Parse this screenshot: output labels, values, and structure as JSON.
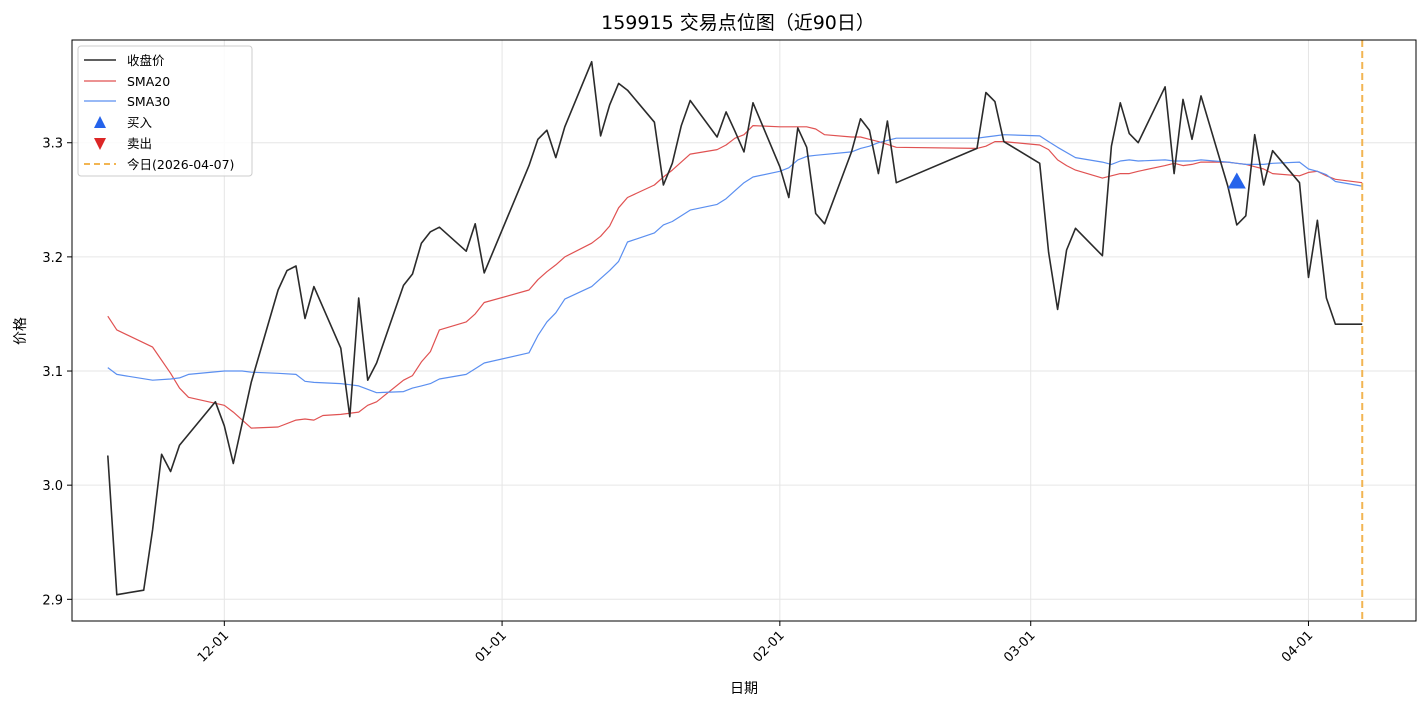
{
  "chart_data": {
    "type": "line",
    "title": "159915 交易点位图（近90日）",
    "xlabel": "日期",
    "ylabel": "价格",
    "x_ticks": [
      {
        "label": "12-01",
        "date": "2025-12-01"
      },
      {
        "label": "01-01",
        "date": "2026-01-01"
      },
      {
        "label": "02-01",
        "date": "2026-02-01"
      },
      {
        "label": "03-01",
        "date": "2026-03-01"
      },
      {
        "label": "04-01",
        "date": "2026-04-01"
      }
    ],
    "xlim": [
      "2025-11-14",
      "2026-04-13"
    ],
    "y_ticks": [
      2.9,
      3.0,
      3.1,
      3.2,
      3.3
    ],
    "ylim": [
      2.881,
      3.39
    ],
    "grid": true,
    "legend_position": "top-left",
    "colors": {
      "close": "#2b2b2b",
      "sma20": "#e05252",
      "sma30": "#5b8ff0",
      "buy": "#2563eb",
      "sell": "#dc2626",
      "today": "#f2b552"
    },
    "legend": [
      "收盘价",
      "SMA20",
      "SMA30",
      "买入",
      "卖出",
      "今日(2026-04-07)"
    ],
    "series": [
      {
        "name": "收盘价",
        "points": [
          [
            "2025-11-18",
            3.026
          ],
          [
            "2025-11-19",
            2.904
          ],
          [
            "2025-11-22",
            2.908
          ],
          [
            "2025-11-23",
            2.961
          ],
          [
            "2025-11-24",
            3.027
          ],
          [
            "2025-11-25",
            3.012
          ],
          [
            "2025-11-26",
            3.035
          ],
          [
            "2025-11-30",
            3.073
          ],
          [
            "2025-12-01",
            3.052
          ],
          [
            "2025-12-02",
            3.019
          ],
          [
            "2025-12-04",
            3.09
          ],
          [
            "2025-12-07",
            3.171
          ],
          [
            "2025-12-08",
            3.188
          ],
          [
            "2025-12-09",
            3.192
          ],
          [
            "2025-12-10",
            3.146
          ],
          [
            "2025-12-11",
            3.174
          ],
          [
            "2025-12-14",
            3.12
          ],
          [
            "2025-12-15",
            3.06
          ],
          [
            "2025-12-16",
            3.164
          ],
          [
            "2025-12-17",
            3.092
          ],
          [
            "2025-12-18",
            3.107
          ],
          [
            "2025-12-21",
            3.175
          ],
          [
            "2025-12-22",
            3.185
          ],
          [
            "2025-12-23",
            3.212
          ],
          [
            "2025-12-24",
            3.222
          ],
          [
            "2025-12-25",
            3.226
          ],
          [
            "2025-12-28",
            3.205
          ],
          [
            "2025-12-29",
            3.229
          ],
          [
            "2025-12-30",
            3.186
          ],
          [
            "2026-01-04",
            3.28
          ],
          [
            "2026-01-05",
            3.303
          ],
          [
            "2026-01-06",
            3.311
          ],
          [
            "2026-01-07",
            3.287
          ],
          [
            "2026-01-08",
            3.314
          ],
          [
            "2026-01-11",
            3.371
          ],
          [
            "2026-01-12",
            3.306
          ],
          [
            "2026-01-13",
            3.333
          ],
          [
            "2026-01-14",
            3.352
          ],
          [
            "2026-01-15",
            3.346
          ],
          [
            "2026-01-18",
            3.318
          ],
          [
            "2026-01-19",
            3.263
          ],
          [
            "2026-01-20",
            3.282
          ],
          [
            "2026-01-21",
            3.315
          ],
          [
            "2026-01-22",
            3.337
          ],
          [
            "2026-01-25",
            3.305
          ],
          [
            "2026-01-26",
            3.327
          ],
          [
            "2026-01-27",
            3.31
          ],
          [
            "2026-01-28",
            3.292
          ],
          [
            "2026-01-29",
            3.335
          ],
          [
            "2026-02-01",
            3.279
          ],
          [
            "2026-02-02",
            3.252
          ],
          [
            "2026-02-03",
            3.313
          ],
          [
            "2026-02-04",
            3.296
          ],
          [
            "2026-02-05",
            3.238
          ],
          [
            "2026-02-06",
            3.229
          ],
          [
            "2026-02-09",
            3.292
          ],
          [
            "2026-02-10",
            3.321
          ],
          [
            "2026-02-11",
            3.311
          ],
          [
            "2026-02-12",
            3.273
          ],
          [
            "2026-02-13",
            3.319
          ],
          [
            "2026-02-14",
            3.265
          ],
          [
            "2026-02-23",
            3.295
          ],
          [
            "2026-02-24",
            3.344
          ],
          [
            "2026-02-25",
            3.336
          ],
          [
            "2026-02-26",
            3.301
          ],
          [
            "2026-03-02",
            3.282
          ],
          [
            "2026-03-03",
            3.204
          ],
          [
            "2026-03-04",
            3.154
          ],
          [
            "2026-03-05",
            3.206
          ],
          [
            "2026-03-06",
            3.225
          ],
          [
            "2026-03-09",
            3.201
          ],
          [
            "2026-03-10",
            3.297
          ],
          [
            "2026-03-11",
            3.335
          ],
          [
            "2026-03-12",
            3.308
          ],
          [
            "2026-03-13",
            3.3
          ],
          [
            "2026-03-16",
            3.349
          ],
          [
            "2026-03-17",
            3.273
          ],
          [
            "2026-03-18",
            3.338
          ],
          [
            "2026-03-19",
            3.303
          ],
          [
            "2026-03-20",
            3.341
          ],
          [
            "2026-03-23",
            3.262
          ],
          [
            "2026-03-24",
            3.228
          ],
          [
            "2026-03-25",
            3.236
          ],
          [
            "2026-03-26",
            3.307
          ],
          [
            "2026-03-27",
            3.263
          ],
          [
            "2026-03-28",
            3.293
          ],
          [
            "2026-03-31",
            3.265
          ],
          [
            "2026-04-01",
            3.182
          ],
          [
            "2026-04-02",
            3.232
          ],
          [
            "2026-04-03",
            3.164
          ],
          [
            "2026-04-04",
            3.141
          ],
          [
            "2026-04-07",
            3.141
          ]
        ]
      },
      {
        "name": "SMA20",
        "points": [
          [
            "2025-11-18",
            3.148
          ],
          [
            "2025-11-19",
            3.136
          ],
          [
            "2025-11-23",
            3.121
          ],
          [
            "2025-11-25",
            3.098
          ],
          [
            "2025-11-26",
            3.085
          ],
          [
            "2025-11-27",
            3.077
          ],
          [
            "2025-12-01",
            3.07
          ],
          [
            "2025-12-02",
            3.064
          ],
          [
            "2025-12-04",
            3.05
          ],
          [
            "2025-12-07",
            3.051
          ],
          [
            "2025-12-09",
            3.057
          ],
          [
            "2025-12-10",
            3.058
          ],
          [
            "2025-12-11",
            3.057
          ],
          [
            "2025-12-12",
            3.061
          ],
          [
            "2025-12-14",
            3.062
          ],
          [
            "2025-12-16",
            3.064
          ],
          [
            "2025-12-17",
            3.07
          ],
          [
            "2025-12-18",
            3.073
          ],
          [
            "2025-12-21",
            3.092
          ],
          [
            "2025-12-22",
            3.096
          ],
          [
            "2025-12-23",
            3.108
          ],
          [
            "2025-12-24",
            3.117
          ],
          [
            "2025-12-25",
            3.136
          ],
          [
            "2025-12-28",
            3.143
          ],
          [
            "2025-12-29",
            3.15
          ],
          [
            "2025-12-30",
            3.16
          ],
          [
            "2026-01-04",
            3.171
          ],
          [
            "2026-01-05",
            3.18
          ],
          [
            "2026-01-06",
            3.187
          ],
          [
            "2026-01-07",
            3.193
          ],
          [
            "2026-01-08",
            3.2
          ],
          [
            "2026-01-11",
            3.212
          ],
          [
            "2026-01-12",
            3.218
          ],
          [
            "2026-01-13",
            3.227
          ],
          [
            "2026-01-14",
            3.243
          ],
          [
            "2026-01-15",
            3.252
          ],
          [
            "2026-01-18",
            3.263
          ],
          [
            "2026-01-19",
            3.27
          ],
          [
            "2026-01-20",
            3.276
          ],
          [
            "2026-01-22",
            3.29
          ],
          [
            "2026-01-25",
            3.294
          ],
          [
            "2026-01-26",
            3.298
          ],
          [
            "2026-01-27",
            3.304
          ],
          [
            "2026-01-28",
            3.307
          ],
          [
            "2026-01-29",
            3.315
          ],
          [
            "2026-02-01",
            3.314
          ],
          [
            "2026-02-02",
            3.314
          ],
          [
            "2026-02-04",
            3.314
          ],
          [
            "2026-02-05",
            3.312
          ],
          [
            "2026-02-06",
            3.307
          ],
          [
            "2026-02-09",
            3.305
          ],
          [
            "2026-02-10",
            3.305
          ],
          [
            "2026-02-11",
            3.303
          ],
          [
            "2026-02-12",
            3.301
          ],
          [
            "2026-02-14",
            3.296
          ],
          [
            "2026-02-23",
            3.295
          ],
          [
            "2026-02-24",
            3.297
          ],
          [
            "2026-02-25",
            3.301
          ],
          [
            "2026-02-26",
            3.301
          ],
          [
            "2026-03-02",
            3.298
          ],
          [
            "2026-03-03",
            3.294
          ],
          [
            "2026-03-04",
            3.285
          ],
          [
            "2026-03-05",
            3.28
          ],
          [
            "2026-03-06",
            3.276
          ],
          [
            "2026-03-09",
            3.269
          ],
          [
            "2026-03-10",
            3.271
          ],
          [
            "2026-03-11",
            3.273
          ],
          [
            "2026-03-12",
            3.273
          ],
          [
            "2026-03-13",
            3.275
          ],
          [
            "2026-03-16",
            3.28
          ],
          [
            "2026-03-17",
            3.282
          ],
          [
            "2026-03-18",
            3.28
          ],
          [
            "2026-03-19",
            3.281
          ],
          [
            "2026-03-20",
            3.283
          ],
          [
            "2026-03-23",
            3.283
          ],
          [
            "2026-03-24",
            3.282
          ],
          [
            "2026-03-25",
            3.281
          ],
          [
            "2026-03-26",
            3.279
          ],
          [
            "2026-03-27",
            3.277
          ],
          [
            "2026-03-28",
            3.273
          ],
          [
            "2026-03-31",
            3.271
          ],
          [
            "2026-04-01",
            3.274
          ],
          [
            "2026-04-02",
            3.275
          ],
          [
            "2026-04-03",
            3.271
          ],
          [
            "2026-04-04",
            3.268
          ],
          [
            "2026-04-07",
            3.265
          ]
        ]
      },
      {
        "name": "SMA30",
        "points": [
          [
            "2025-11-18",
            3.103
          ],
          [
            "2025-11-19",
            3.097
          ],
          [
            "2025-11-23",
            3.092
          ],
          [
            "2025-11-25",
            3.093
          ],
          [
            "2025-11-26",
            3.094
          ],
          [
            "2025-11-27",
            3.097
          ],
          [
            "2025-12-01",
            3.1
          ],
          [
            "2025-12-02",
            3.1
          ],
          [
            "2025-12-03",
            3.1
          ],
          [
            "2025-12-04",
            3.099
          ],
          [
            "2025-12-07",
            3.098
          ],
          [
            "2025-12-09",
            3.097
          ],
          [
            "2025-12-10",
            3.091
          ],
          [
            "2025-12-11",
            3.09
          ],
          [
            "2025-12-14",
            3.089
          ],
          [
            "2025-12-15",
            3.088
          ],
          [
            "2025-12-16",
            3.087
          ],
          [
            "2025-12-17",
            3.084
          ],
          [
            "2025-12-18",
            3.081
          ],
          [
            "2025-12-21",
            3.082
          ],
          [
            "2025-12-22",
            3.085
          ],
          [
            "2025-12-23",
            3.087
          ],
          [
            "2025-12-24",
            3.089
          ],
          [
            "2025-12-25",
            3.093
          ],
          [
            "2025-12-28",
            3.097
          ],
          [
            "2025-12-29",
            3.102
          ],
          [
            "2025-12-30",
            3.107
          ],
          [
            "2026-01-04",
            3.116
          ],
          [
            "2026-01-05",
            3.131
          ],
          [
            "2026-01-06",
            3.143
          ],
          [
            "2026-01-07",
            3.151
          ],
          [
            "2026-01-08",
            3.163
          ],
          [
            "2026-01-11",
            3.174
          ],
          [
            "2026-01-12",
            3.181
          ],
          [
            "2026-01-13",
            3.188
          ],
          [
            "2026-01-14",
            3.196
          ],
          [
            "2026-01-15",
            3.213
          ],
          [
            "2026-01-18",
            3.221
          ],
          [
            "2026-01-19",
            3.228
          ],
          [
            "2026-01-20",
            3.231
          ],
          [
            "2026-01-22",
            3.241
          ],
          [
            "2026-01-25",
            3.246
          ],
          [
            "2026-01-26",
            3.251
          ],
          [
            "2026-01-27",
            3.258
          ],
          [
            "2026-01-28",
            3.265
          ],
          [
            "2026-01-29",
            3.27
          ],
          [
            "2026-02-01",
            3.275
          ],
          [
            "2026-02-02",
            3.278
          ],
          [
            "2026-02-03",
            3.285
          ],
          [
            "2026-02-04",
            3.288
          ],
          [
            "2026-02-05",
            3.289
          ],
          [
            "2026-02-09",
            3.292
          ],
          [
            "2026-02-10",
            3.295
          ],
          [
            "2026-02-11",
            3.297
          ],
          [
            "2026-02-12",
            3.3
          ],
          [
            "2026-02-13",
            3.302
          ],
          [
            "2026-02-14",
            3.304
          ],
          [
            "2026-02-23",
            3.304
          ],
          [
            "2026-02-24",
            3.305
          ],
          [
            "2026-02-25",
            3.306
          ],
          [
            "2026-02-26",
            3.307
          ],
          [
            "2026-03-02",
            3.306
          ],
          [
            "2026-03-03",
            3.301
          ],
          [
            "2026-03-04",
            3.296
          ],
          [
            "2026-03-06",
            3.287
          ],
          [
            "2026-03-09",
            3.283
          ],
          [
            "2026-03-10",
            3.281
          ],
          [
            "2026-03-11",
            3.284
          ],
          [
            "2026-03-12",
            3.285
          ],
          [
            "2026-03-13",
            3.284
          ],
          [
            "2026-03-16",
            3.285
          ],
          [
            "2026-03-17",
            3.284
          ],
          [
            "2026-03-18",
            3.284
          ],
          [
            "2026-03-19",
            3.284
          ],
          [
            "2026-03-20",
            3.285
          ],
          [
            "2026-03-23",
            3.283
          ],
          [
            "2026-03-24",
            3.282
          ],
          [
            "2026-03-25",
            3.281
          ],
          [
            "2026-03-26",
            3.281
          ],
          [
            "2026-03-27",
            3.281
          ],
          [
            "2026-03-28",
            3.282
          ],
          [
            "2026-03-31",
            3.283
          ],
          [
            "2026-04-01",
            3.277
          ],
          [
            "2026-04-02",
            3.275
          ],
          [
            "2026-04-03",
            3.272
          ],
          [
            "2026-04-04",
            3.266
          ],
          [
            "2026-04-07",
            3.262
          ]
        ]
      }
    ],
    "markers": [
      {
        "type": "buy",
        "date": "2026-03-24",
        "price": 3.266
      }
    ],
    "today_line": {
      "date": "2026-04-07"
    }
  }
}
